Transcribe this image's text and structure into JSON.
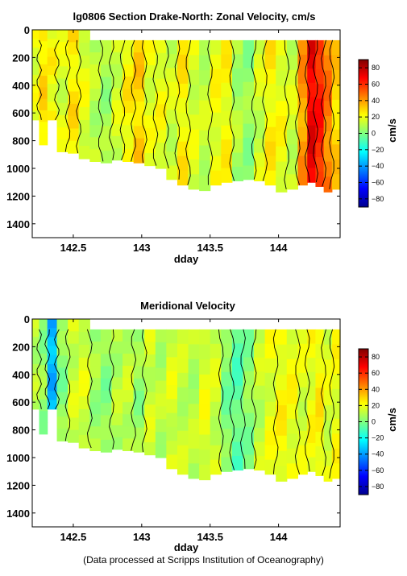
{
  "footnote": "(Data processed at Scripps Institution of Oceanography)",
  "chart_data": [
    {
      "type": "heatmap",
      "title": "lg0806 Section Drake-North: Zonal Velocity, cm/s",
      "xlabel": "dday",
      "ylabel": "",
      "x_ticks": [
        "142.5",
        "143",
        "143.5",
        "144"
      ],
      "x_tick_values": [
        142.5,
        143,
        143.5,
        144
      ],
      "xlim": [
        142.2,
        144.45
      ],
      "y_ticks": [
        "0",
        "200",
        "400",
        "600",
        "800",
        "1000",
        "1200",
        "1400"
      ],
      "y_tick_values": [
        0,
        200,
        400,
        600,
        800,
        1000,
        1200,
        1400
      ],
      "ylim": [
        0,
        1500
      ],
      "y_reversed": true,
      "colorbar": {
        "label": "cm/s",
        "range": [
          -90,
          90
        ],
        "ticks": [
          "80",
          "60",
          "40",
          "20",
          "0",
          "−20",
          "−40",
          "−60",
          "−80"
        ],
        "tick_values": [
          80,
          60,
          40,
          20,
          0,
          -20,
          -40,
          -60,
          -80
        ],
        "colormap": "jet"
      },
      "columns": [
        {
          "x": 142.22,
          "v": 18,
          "bottom": 650
        },
        {
          "x": 142.28,
          "v": 28,
          "bottom": 830
        },
        {
          "x": 142.34,
          "v": 22,
          "bottom": 650
        },
        {
          "x": 142.42,
          "v": 16,
          "bottom": 880
        },
        {
          "x": 142.5,
          "v": 26,
          "bottom": 890
        },
        {
          "x": 142.58,
          "v": 18,
          "bottom": 930
        },
        {
          "x": 142.66,
          "v": 10,
          "bottom": 950
        },
        {
          "x": 142.74,
          "v": 6,
          "bottom": 960
        },
        {
          "x": 142.82,
          "v": 15,
          "bottom": 940
        },
        {
          "x": 142.9,
          "v": 24,
          "bottom": 950
        },
        {
          "x": 142.98,
          "v": 30,
          "bottom": 960
        },
        {
          "x": 143.06,
          "v": 18,
          "bottom": 980
        },
        {
          "x": 143.14,
          "v": 20,
          "bottom": 1000
        },
        {
          "x": 143.22,
          "v": 14,
          "bottom": 1080
        },
        {
          "x": 143.3,
          "v": 24,
          "bottom": 1120
        },
        {
          "x": 143.38,
          "v": 16,
          "bottom": 1150
        },
        {
          "x": 143.46,
          "v": 12,
          "bottom": 1160
        },
        {
          "x": 143.54,
          "v": 20,
          "bottom": 1120
        },
        {
          "x": 143.62,
          "v": 22,
          "bottom": 1100
        },
        {
          "x": 143.7,
          "v": 8,
          "bottom": 1090
        },
        {
          "x": 143.78,
          "v": 4,
          "bottom": 1080
        },
        {
          "x": 143.86,
          "v": 14,
          "bottom": 1090
        },
        {
          "x": 143.94,
          "v": 24,
          "bottom": 1120
        },
        {
          "x": 144.02,
          "v": 20,
          "bottom": 1170
        },
        {
          "x": 144.1,
          "v": 14,
          "bottom": 1150
        },
        {
          "x": 144.18,
          "v": 40,
          "bottom": 1120
        },
        {
          "x": 144.24,
          "v": 70,
          "bottom": 1100
        },
        {
          "x": 144.3,
          "v": 62,
          "bottom": 1130
        },
        {
          "x": 144.36,
          "v": 45,
          "bottom": 1170
        },
        {
          "x": 144.42,
          "v": 30,
          "bottom": 1150
        }
      ]
    },
    {
      "type": "heatmap",
      "title": "Meridional Velocity",
      "xlabel": "dday",
      "ylabel": "",
      "x_ticks": [
        "142.5",
        "143",
        "143.5",
        "144"
      ],
      "x_tick_values": [
        142.5,
        143,
        143.5,
        144
      ],
      "xlim": [
        142.2,
        144.45
      ],
      "y_ticks": [
        "0",
        "200",
        "400",
        "600",
        "800",
        "1000",
        "1200",
        "1400"
      ],
      "y_tick_values": [
        0,
        200,
        400,
        600,
        800,
        1000,
        1200,
        1400
      ],
      "ylim": [
        0,
        1500
      ],
      "y_reversed": true,
      "colorbar": {
        "label": "cm/s",
        "range": [
          -90,
          90
        ],
        "ticks": [
          "80",
          "60",
          "40",
          "20",
          "0",
          "−20",
          "−40",
          "−60",
          "−80"
        ],
        "tick_values": [
          80,
          60,
          40,
          20,
          0,
          -20,
          -40,
          -60,
          -80
        ],
        "colormap": "jet"
      },
      "columns": [
        {
          "x": 142.22,
          "v": 10,
          "bottom": 650
        },
        {
          "x": 142.28,
          "v": 4,
          "bottom": 830
        },
        {
          "x": 142.34,
          "v": -35,
          "bottom": 650
        },
        {
          "x": 142.42,
          "v": 2,
          "bottom": 880
        },
        {
          "x": 142.5,
          "v": 14,
          "bottom": 890
        },
        {
          "x": 142.58,
          "v": 16,
          "bottom": 930
        },
        {
          "x": 142.66,
          "v": 6,
          "bottom": 950
        },
        {
          "x": 142.74,
          "v": 2,
          "bottom": 960
        },
        {
          "x": 142.82,
          "v": 10,
          "bottom": 940
        },
        {
          "x": 142.9,
          "v": 12,
          "bottom": 950
        },
        {
          "x": 142.98,
          "v": 4,
          "bottom": 960
        },
        {
          "x": 143.06,
          "v": 14,
          "bottom": 980
        },
        {
          "x": 143.14,
          "v": 10,
          "bottom": 1000
        },
        {
          "x": 143.22,
          "v": 16,
          "bottom": 1080
        },
        {
          "x": 143.3,
          "v": 12,
          "bottom": 1120
        },
        {
          "x": 143.38,
          "v": 10,
          "bottom": 1150
        },
        {
          "x": 143.46,
          "v": 18,
          "bottom": 1160
        },
        {
          "x": 143.54,
          "v": 14,
          "bottom": 1120
        },
        {
          "x": 143.62,
          "v": 0,
          "bottom": 1100
        },
        {
          "x": 143.7,
          "v": -6,
          "bottom": 1090
        },
        {
          "x": 143.78,
          "v": 2,
          "bottom": 1080
        },
        {
          "x": 143.86,
          "v": 12,
          "bottom": 1090
        },
        {
          "x": 143.94,
          "v": 18,
          "bottom": 1120
        },
        {
          "x": 144.02,
          "v": 22,
          "bottom": 1170
        },
        {
          "x": 144.1,
          "v": 20,
          "bottom": 1150
        },
        {
          "x": 144.18,
          "v": 16,
          "bottom": 1120
        },
        {
          "x": 144.24,
          "v": 20,
          "bottom": 1100
        },
        {
          "x": 144.3,
          "v": 24,
          "bottom": 1130
        },
        {
          "x": 144.36,
          "v": 16,
          "bottom": 1170
        },
        {
          "x": 144.42,
          "v": 20,
          "bottom": 1150
        }
      ]
    }
  ]
}
